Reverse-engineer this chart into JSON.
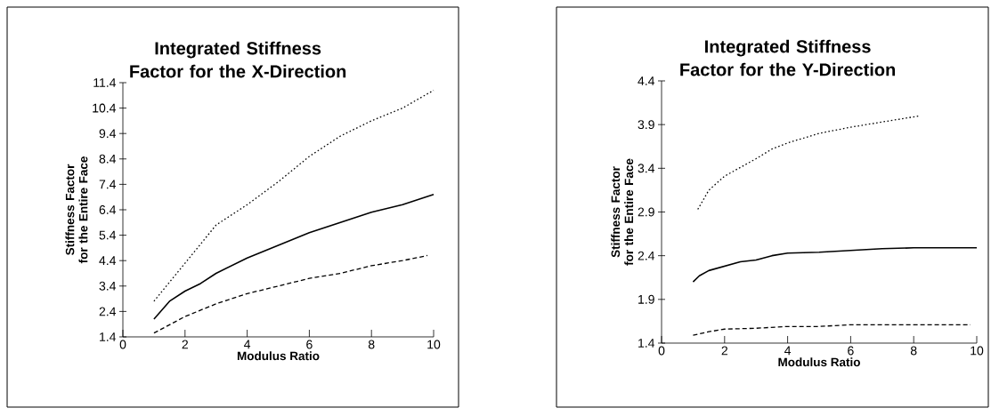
{
  "chart_data": [
    {
      "type": "line",
      "title": "Integrated Stiffness Factor for the X-Direction",
      "xlabel": "Modulus Ratio",
      "ylabel": "Stiffness Factor for the Entire Face",
      "xlim": [
        0,
        10
      ],
      "ylim": [
        1.4,
        11.4
      ],
      "xticks": [
        0,
        2,
        4,
        6,
        8,
        10
      ],
      "yticks": [
        1.4,
        2.4,
        3.4,
        4.4,
        5.4,
        6.4,
        7.4,
        8.4,
        9.4,
        10.4,
        11.4
      ],
      "series": [
        {
          "color": "#000000",
          "line_style": "dotted",
          "x": [
            1,
            2,
            3,
            4,
            5,
            6,
            7,
            8,
            9,
            10
          ],
          "values": [
            2.8,
            4.3,
            5.8,
            6.6,
            7.5,
            8.5,
            9.3,
            9.9,
            10.4,
            11.1
          ]
        },
        {
          "color": "#000000",
          "line_style": "solid",
          "x": [
            1,
            1.5,
            2,
            2.5,
            3,
            4,
            5,
            6,
            7,
            8,
            9,
            10
          ],
          "values": [
            2.1,
            2.8,
            3.2,
            3.5,
            3.9,
            4.5,
            5.0,
            5.5,
            5.9,
            6.3,
            6.6,
            7.0
          ]
        },
        {
          "color": "#000000",
          "line_style": "dashed",
          "x": [
            1,
            2,
            3,
            4,
            5,
            6,
            7,
            8,
            9,
            9.8
          ],
          "values": [
            1.55,
            2.2,
            2.7,
            3.1,
            3.4,
            3.7,
            3.9,
            4.2,
            4.4,
            4.6
          ]
        }
      ]
    },
    {
      "type": "line",
      "title": "Integrated Stiffness Factor for the Y-Direction",
      "xlabel": "Modulus Ratio",
      "ylabel": "Stiffness Factor for the Entire Face",
      "xlim": [
        0,
        10
      ],
      "ylim": [
        1.4,
        4.4
      ],
      "xticks": [
        0,
        2,
        4,
        6,
        8,
        10
      ],
      "yticks": [
        1.4,
        1.9,
        2.4,
        2.9,
        3.4,
        3.9,
        4.4
      ],
      "series": [
        {
          "color": "#000000",
          "line_style": "dotted",
          "x": [
            1.15,
            1.5,
            2,
            3,
            3.5,
            4,
            5,
            6,
            7,
            8.2
          ],
          "values": [
            2.93,
            3.15,
            3.31,
            3.51,
            3.62,
            3.69,
            3.8,
            3.87,
            3.93,
            4.0
          ]
        },
        {
          "color": "#000000",
          "line_style": "solid",
          "x": [
            1,
            1.2,
            1.5,
            2,
            2.5,
            3,
            3.5,
            4,
            5,
            6,
            7,
            8,
            10
          ],
          "values": [
            2.1,
            2.17,
            2.23,
            2.28,
            2.33,
            2.35,
            2.4,
            2.43,
            2.44,
            2.46,
            2.48,
            2.49,
            2.49
          ]
        },
        {
          "color": "#000000",
          "line_style": "dashed",
          "x": [
            1,
            1.5,
            2,
            3,
            4,
            5,
            6,
            8,
            9.8
          ],
          "values": [
            1.49,
            1.53,
            1.56,
            1.57,
            1.59,
            1.59,
            1.61,
            1.61,
            1.61
          ]
        }
      ]
    }
  ]
}
